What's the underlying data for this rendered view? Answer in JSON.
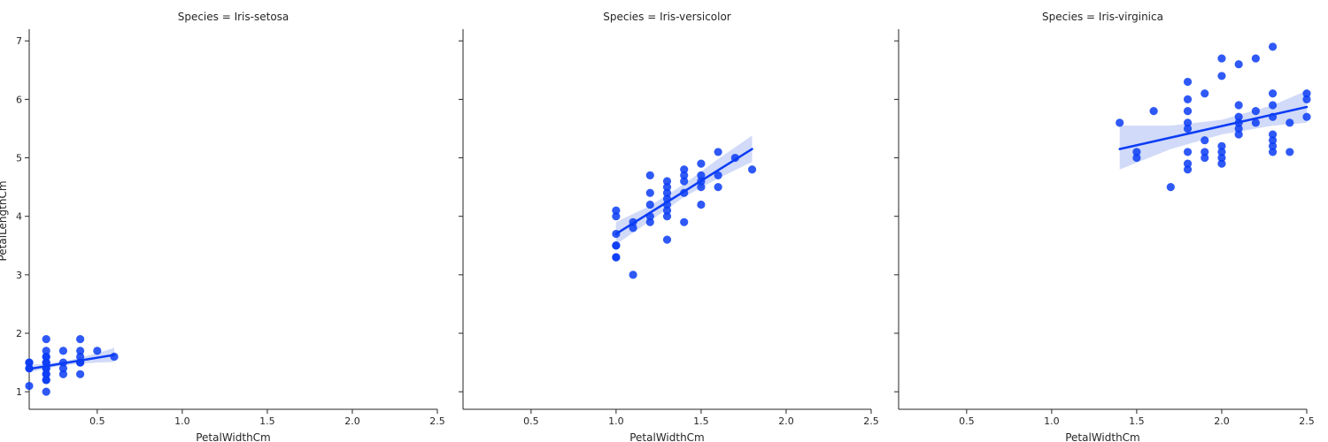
{
  "chart_data": {
    "type": "scatter",
    "layout": "facet-grid",
    "shared_y": true,
    "xlabel": "PetalWidthCm",
    "ylabel": "PetalLengthCm",
    "xlim": [
      0.1,
      2.5
    ],
    "ylim": [
      0.7,
      7.2
    ],
    "xticks": [
      "0.5",
      "1.0",
      "1.5",
      "2.0",
      "2.5"
    ],
    "yticks": [
      "1",
      "2",
      "3",
      "4",
      "5",
      "6",
      "7"
    ],
    "grid": false,
    "marker_color": "#0b3cf5",
    "line_color": "#0b3cf5",
    "band_color": "#c9d4f7",
    "panels": [
      {
        "title": "Species = Iris-setosa",
        "fit": {
          "x0": 0.1,
          "y0": 1.39,
          "x1": 0.6,
          "y1": 1.63
        },
        "band": {
          "x": [
            0.1,
            0.2,
            0.3,
            0.4,
            0.5,
            0.6
          ],
          "lower": [
            1.33,
            1.4,
            1.45,
            1.48,
            1.5,
            1.51
          ],
          "upper": [
            1.46,
            1.48,
            1.52,
            1.58,
            1.66,
            1.75
          ]
        },
        "points": [
          [
            0.1,
            1.4
          ],
          [
            0.1,
            1.5
          ],
          [
            0.1,
            1.1
          ],
          [
            0.1,
            1.4
          ],
          [
            0.1,
            1.5
          ],
          [
            0.2,
            1.4
          ],
          [
            0.2,
            1.3
          ],
          [
            0.2,
            1.5
          ],
          [
            0.2,
            1.6
          ],
          [
            0.2,
            1.2
          ],
          [
            0.2,
            1.9
          ],
          [
            0.2,
            1.0
          ],
          [
            0.2,
            1.7
          ],
          [
            0.2,
            1.5
          ],
          [
            0.2,
            1.4
          ],
          [
            0.2,
            1.3
          ],
          [
            0.2,
            1.6
          ],
          [
            0.2,
            1.2
          ],
          [
            0.3,
            1.4
          ],
          [
            0.3,
            1.3
          ],
          [
            0.3,
            1.7
          ],
          [
            0.3,
            1.5
          ],
          [
            0.4,
            1.5
          ],
          [
            0.4,
            1.7
          ],
          [
            0.4,
            1.3
          ],
          [
            0.4,
            1.9
          ],
          [
            0.4,
            1.6
          ],
          [
            0.4,
            1.5
          ],
          [
            0.5,
            1.7
          ],
          [
            0.6,
            1.6
          ]
        ]
      },
      {
        "title": "Species = Iris-versicolor",
        "fit": {
          "x0": 1.0,
          "y0": 3.7,
          "x1": 1.8,
          "y1": 5.15
        },
        "band": {
          "x": [
            1.0,
            1.2,
            1.4,
            1.6,
            1.8
          ],
          "lower": [
            3.52,
            3.92,
            4.33,
            4.65,
            4.93
          ],
          "upper": [
            3.9,
            4.18,
            4.55,
            4.98,
            5.38
          ]
        },
        "points": [
          [
            1.0,
            3.3
          ],
          [
            1.0,
            3.5
          ],
          [
            1.0,
            4.0
          ],
          [
            1.0,
            4.1
          ],
          [
            1.0,
            3.7
          ],
          [
            1.0,
            3.3
          ],
          [
            1.0,
            3.5
          ],
          [
            1.1,
            3.0
          ],
          [
            1.1,
            3.8
          ],
          [
            1.1,
            3.9
          ],
          [
            1.2,
            4.0
          ],
          [
            1.2,
            4.7
          ],
          [
            1.2,
            4.2
          ],
          [
            1.2,
            4.4
          ],
          [
            1.2,
            3.9
          ],
          [
            1.3,
            4.0
          ],
          [
            1.3,
            4.4
          ],
          [
            1.3,
            4.6
          ],
          [
            1.3,
            4.5
          ],
          [
            1.3,
            4.1
          ],
          [
            1.3,
            4.3
          ],
          [
            1.3,
            4.2
          ],
          [
            1.3,
            3.6
          ],
          [
            1.4,
            4.7
          ],
          [
            1.4,
            4.4
          ],
          [
            1.4,
            4.6
          ],
          [
            1.4,
            4.8
          ],
          [
            1.4,
            3.9
          ],
          [
            1.5,
            4.5
          ],
          [
            1.5,
            4.9
          ],
          [
            1.5,
            4.2
          ],
          [
            1.5,
            4.6
          ],
          [
            1.5,
            4.7
          ],
          [
            1.6,
            4.5
          ],
          [
            1.6,
            4.7
          ],
          [
            1.6,
            5.1
          ],
          [
            1.7,
            5.0
          ],
          [
            1.8,
            4.8
          ]
        ]
      },
      {
        "title": "Species = Iris-virginica",
        "fit": {
          "x0": 1.4,
          "y0": 5.15,
          "x1": 2.5,
          "y1": 5.87
        },
        "band": {
          "x": [
            1.4,
            1.7,
            2.0,
            2.3,
            2.5
          ],
          "lower": [
            4.8,
            5.15,
            5.4,
            5.55,
            5.6
          ],
          "upper": [
            5.55,
            5.55,
            5.65,
            5.9,
            6.15
          ]
        },
        "points": [
          [
            1.4,
            5.6
          ],
          [
            1.5,
            5.1
          ],
          [
            1.5,
            5.0
          ],
          [
            1.6,
            5.8
          ],
          [
            1.7,
            4.5
          ],
          [
            1.8,
            6.3
          ],
          [
            1.8,
            6.0
          ],
          [
            1.8,
            5.8
          ],
          [
            1.8,
            5.6
          ],
          [
            1.8,
            5.5
          ],
          [
            1.8,
            5.1
          ],
          [
            1.8,
            4.9
          ],
          [
            1.8,
            4.8
          ],
          [
            1.9,
            6.1
          ],
          [
            1.9,
            5.3
          ],
          [
            1.9,
            5.1
          ],
          [
            1.9,
            5.0
          ],
          [
            2.0,
            6.7
          ],
          [
            2.0,
            6.4
          ],
          [
            2.0,
            5.2
          ],
          [
            2.0,
            5.1
          ],
          [
            2.0,
            5.0
          ],
          [
            2.0,
            4.9
          ],
          [
            2.1,
            6.6
          ],
          [
            2.1,
            5.9
          ],
          [
            2.1,
            5.7
          ],
          [
            2.1,
            5.6
          ],
          [
            2.1,
            5.5
          ],
          [
            2.1,
            5.4
          ],
          [
            2.2,
            6.7
          ],
          [
            2.2,
            5.8
          ],
          [
            2.2,
            5.6
          ],
          [
            2.3,
            6.9
          ],
          [
            2.3,
            6.1
          ],
          [
            2.3,
            5.9
          ],
          [
            2.3,
            5.7
          ],
          [
            2.3,
            5.4
          ],
          [
            2.3,
            5.3
          ],
          [
            2.3,
            5.2
          ],
          [
            2.3,
            5.1
          ],
          [
            2.4,
            5.6
          ],
          [
            2.4,
            5.1
          ],
          [
            2.5,
            6.1
          ],
          [
            2.5,
            6.0
          ],
          [
            2.5,
            5.7
          ]
        ]
      }
    ]
  }
}
